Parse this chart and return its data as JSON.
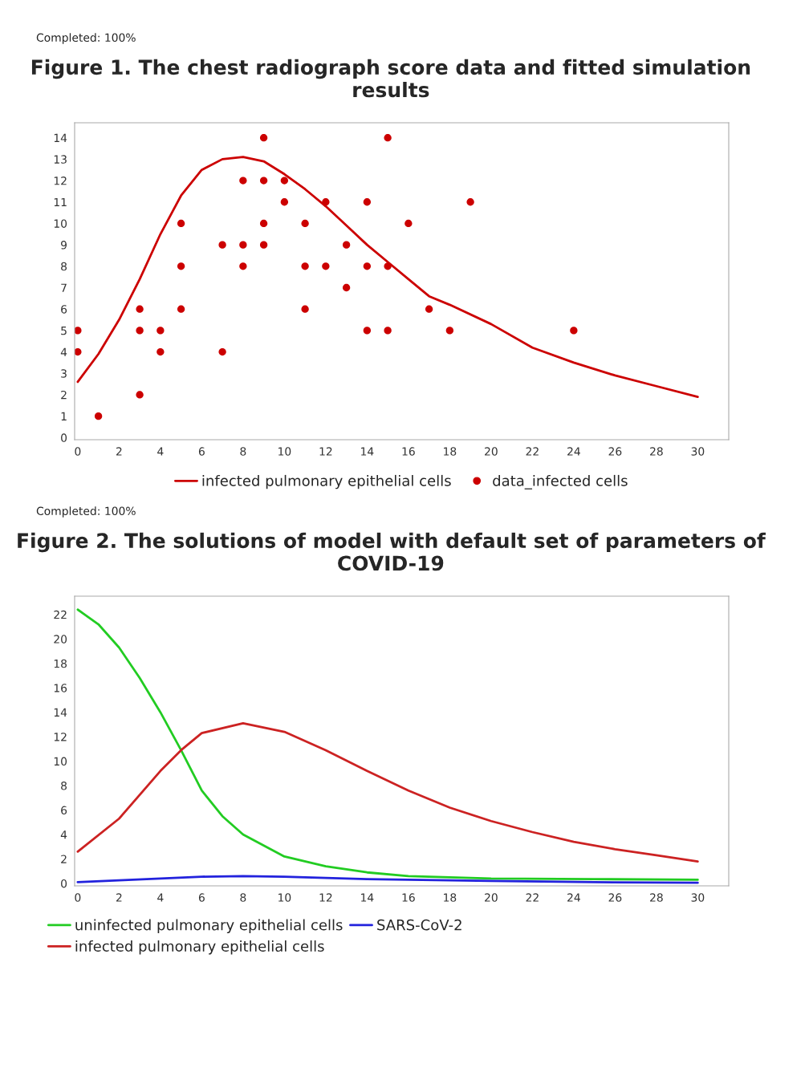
{
  "chart_data": [
    {
      "type": "scatter",
      "title": "Figure 1. The chest radiograph score data and fitted simulation results",
      "annotations": [
        "Completed: 100%"
      ],
      "xlim": [
        -0.15,
        31.5
      ],
      "xticks": [
        0,
        2,
        4,
        6,
        8,
        10,
        12,
        14,
        16,
        18,
        20,
        22,
        24,
        26,
        28,
        30
      ],
      "ylim": [
        -0.1,
        14.7
      ],
      "yticks": [
        0,
        1,
        2,
        3,
        4,
        5,
        6,
        7,
        8,
        9,
        10,
        11,
        12,
        13,
        14
      ],
      "grid": false,
      "legend": "bottom",
      "series": [
        {
          "name": "infected pulmonary epithelial cells",
          "type": "line",
          "color": "#cc0000",
          "marker": "none",
          "line_style": "solid",
          "x": [
            0,
            1,
            2,
            3,
            4,
            5,
            6,
            7,
            8,
            9,
            10,
            11,
            12,
            13,
            14,
            15,
            16,
            17,
            18,
            20,
            22,
            24,
            26,
            28,
            30
          ],
          "values": [
            2.6,
            3.9,
            5.5,
            7.4,
            9.5,
            11.3,
            12.5,
            13.0,
            13.1,
            12.9,
            12.3,
            11.6,
            10.8,
            9.9,
            9.0,
            8.2,
            7.4,
            6.6,
            6.2,
            5.3,
            4.2,
            3.5,
            2.9,
            2.4,
            1.9
          ]
        },
        {
          "name": "data_infected cells",
          "type": "scatter",
          "color": "#cc0000",
          "marker": "circle",
          "x": [
            0,
            0,
            1,
            3,
            3,
            3,
            4,
            4,
            5,
            5,
            5,
            7,
            7,
            8,
            8,
            8,
            9,
            9,
            9,
            9,
            10,
            10,
            11,
            11,
            11,
            12,
            12,
            13,
            13,
            14,
            14,
            14,
            15,
            15,
            15,
            16,
            17,
            18,
            19,
            24
          ],
          "values": [
            5,
            4,
            1,
            6,
            5,
            2,
            5,
            4,
            10,
            8,
            6,
            9,
            4,
            12,
            9,
            8,
            14,
            12,
            10,
            9,
            12,
            11,
            10,
            8,
            6,
            11,
            8,
            9,
            7,
            11,
            8,
            5,
            14,
            8,
            5,
            10,
            6,
            5,
            11,
            5
          ]
        }
      ]
    },
    {
      "type": "line",
      "title": "Figure 2. The solutions of model with default set of parameters of COVID-19",
      "annotations": [
        "Completed: 100%"
      ],
      "xlim": [
        -0.15,
        31.5
      ],
      "xticks": [
        0,
        2,
        4,
        6,
        8,
        10,
        12,
        14,
        16,
        18,
        20,
        22,
        24,
        26,
        28,
        30
      ],
      "ylim": [
        -0.2,
        23.5
      ],
      "yticks": [
        0,
        2,
        4,
        6,
        8,
        10,
        12,
        14,
        16,
        18,
        20,
        22
      ],
      "grid": false,
      "legend": "bottom left",
      "marker": "none",
      "line_style": "solid",
      "series": [
        {
          "name": "uninfected pulmonary epithelial cells",
          "color": "#22cc22",
          "x": [
            0,
            1,
            2,
            3,
            4,
            5,
            6,
            7,
            8,
            10,
            12,
            14,
            16,
            20,
            25,
            30
          ],
          "values": [
            22.4,
            21.2,
            19.3,
            16.8,
            14.0,
            10.9,
            7.6,
            5.5,
            4.0,
            2.2,
            1.4,
            0.9,
            0.6,
            0.4,
            0.35,
            0.3
          ]
        },
        {
          "name": "infected pulmonary epithelial cells",
          "color": "#cc2222",
          "x": [
            0,
            2,
            4,
            5,
            6,
            8,
            10,
            12,
            14,
            16,
            18,
            20,
            22,
            24,
            26,
            28,
            30
          ],
          "values": [
            2.6,
            5.3,
            9.2,
            10.9,
            12.3,
            13.1,
            12.4,
            10.9,
            9.2,
            7.6,
            6.2,
            5.1,
            4.2,
            3.4,
            2.8,
            2.3,
            1.8
          ]
        },
        {
          "name": "SARS-CoV-2",
          "color": "#2222dd",
          "x": [
            0,
            2,
            4,
            6,
            8,
            10,
            12,
            14,
            16,
            20,
            25,
            30
          ],
          "values": [
            0.1,
            0.25,
            0.4,
            0.55,
            0.6,
            0.55,
            0.45,
            0.35,
            0.3,
            0.2,
            0.1,
            0.05
          ]
        }
      ]
    }
  ]
}
